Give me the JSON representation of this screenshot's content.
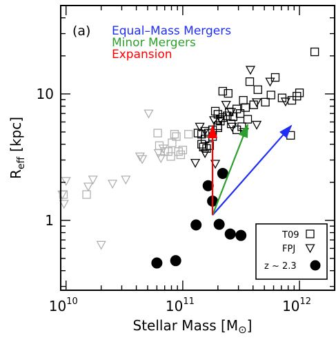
{
  "chart_data": {
    "type": "scatter",
    "panel_label": "(a)",
    "xlabel": "Stellar Mass [M",
    "xlabel_unit_symbol": "⊙",
    "xlabel_close": "]",
    "ylabel_main": "R",
    "ylabel_sub": "eff",
    "ylabel_unit": "[kpc]",
    "xscale": "log",
    "yscale": "log",
    "xlim": [
      9000000000.0,
      2000000000000.0
    ],
    "ylim": [
      0.28,
      50
    ],
    "x_ticks": [
      {
        "value": 10000000000.0,
        "base": "10",
        "exp": "10"
      },
      {
        "value": 100000000000.0,
        "base": "10",
        "exp": "11"
      },
      {
        "value": 1000000000000.0,
        "base": "10",
        "exp": "12"
      }
    ],
    "y_ticks": [
      {
        "value": 1,
        "label": "1"
      },
      {
        "value": 10,
        "label": "10"
      }
    ],
    "colors": {
      "axis": "#000000",
      "gray": "#b0b0b0",
      "equal_mass": "#1f2df5",
      "minor": "#2ca02c",
      "expansion": "#ff0000"
    },
    "annotations": [
      {
        "text": "Equal–Mass Mergers",
        "color": "#1f2df5"
      },
      {
        "text": "Minor Mergers",
        "color": "#2ca02c"
      },
      {
        "text": "Expansion",
        "color": "#ff0000"
      }
    ],
    "legend": {
      "placement": "bottom-right",
      "entries": [
        {
          "label": "T09",
          "marker": "square"
        },
        {
          "label": "FPJ",
          "marker": "triangle-down"
        },
        {
          "label": "z ~ 2.3",
          "marker": "filled-circle"
        }
      ]
    },
    "arrows": [
      {
        "name": "equal-mass-arrow",
        "color": "#1f2df5",
        "from": [
          180000000000.0,
          1.1
        ],
        "to": [
          850000000000.0,
          5.6
        ]
      },
      {
        "name": "minor-arrow",
        "color": "#2ca02c",
        "from": [
          180000000000.0,
          1.1
        ],
        "to": [
          360000000000.0,
          5.7
        ]
      },
      {
        "name": "expansion-arrow",
        "color": "#ff0000",
        "from": [
          180000000000.0,
          1.1
        ],
        "to": [
          180000000000.0,
          5.6
        ]
      }
    ],
    "series": [
      {
        "name": "z ~ 2.3",
        "marker": "filled-circle",
        "color": "#000000",
        "x": [
          60000000000.0,
          87000000000.0,
          130000000000.0,
          165000000000.0,
          180000000000.0,
          205000000000.0,
          220000000000.0,
          255000000000.0,
          315000000000.0
        ],
        "y": [
          0.46,
          0.48,
          0.92,
          1.88,
          1.42,
          0.93,
          2.35,
          0.78,
          0.76
        ]
      },
      {
        "name": "T09",
        "marker": "square",
        "color": "#000000",
        "x": [
          1350000000000.0,
          1000000000000.0,
          860000000000.0,
          950000000000.0,
          710000000000.0,
          620000000000.0,
          375000000000.0,
          440000000000.0,
          570000000000.0,
          510000000000.0,
          405000000000.0,
          345000000000.0,
          290000000000.0,
          250000000000.0,
          220000000000.0,
          200000000000.0,
          190000000000.0,
          270000000000.0,
          310000000000.0,
          330000000000.0,
          360000000000.0,
          245000000000.0,
          220000000000.0,
          200000000000.0,
          180000000000.0,
          165000000000.0,
          155000000000.0,
          145000000000.0,
          135000000000.0,
          145000000000.0,
          160000000000.0,
          180000000000.0,
          200000000000.0,
          210000000000.0,
          240000000000.0,
          260000000000.0,
          290000000000.0,
          320000000000.0,
          170000000000.0,
          150000000000.0,
          840000000000.0
        ],
        "y": [
          21.5,
          10.2,
          8.9,
          9.6,
          9.3,
          13.5,
          12.5,
          10.8,
          9.8,
          8.6,
          8.2,
          7.8,
          7.6,
          7.2,
          6.5,
          6.9,
          7.3,
          6.6,
          7.0,
          8.9,
          6.3,
          10.1,
          10.5,
          5.6,
          5.2,
          4.9,
          4.4,
          4.8,
          4.9,
          4.0,
          3.7,
          4.6,
          5.4,
          6.1,
          6.7,
          5.8,
          5.2,
          5.5,
          3.9,
          3.8,
          4.7
        ]
      },
      {
        "name": "FPJ",
        "marker": "triangle-down",
        "color": "#000000",
        "x": [
          380000000000.0,
          560000000000.0,
          760000000000.0,
          430000000000.0,
          260000000000.0,
          235000000000.0,
          210000000000.0,
          185000000000.0,
          155000000000.0,
          140000000000.0,
          128000000000.0,
          155000000000.0,
          430000000000.0,
          335000000000.0,
          265000000000.0,
          190000000000.0
        ],
        "y": [
          15.5,
          12.5,
          8.7,
          8.6,
          7.2,
          8.2,
          6.3,
          6.2,
          5.1,
          5.5,
          2.85,
          3.4,
          5.7,
          5.0,
          5.5,
          2.8
        ]
      },
      {
        "name": "T09 (gray)",
        "marker": "square",
        "color": "#b0b0b0",
        "x": [
          61000000000.0,
          63000000000.0,
          70000000000.0,
          75000000000.0,
          79000000000.0,
          81000000000.0,
          85000000000.0,
          88000000000.0,
          92000000000.0,
          96000000000.0,
          100000000000.0,
          112000000000.0,
          9500000000.0,
          15000000000.0
        ],
        "y": [
          4.9,
          3.9,
          3.5,
          3.5,
          3.2,
          4.1,
          4.8,
          4.6,
          3.5,
          3.3,
          3.6,
          4.8,
          1.6,
          1.6
        ]
      },
      {
        "name": "FPJ (gray)",
        "marker": "triangle-down",
        "color": "#b0b0b0",
        "x": [
          51000000000.0,
          43000000000.0,
          45000000000.0,
          62000000000.0,
          65000000000.0,
          68000000000.0,
          10000000000.0,
          9300000000.0,
          17000000000.0,
          25000000000.0,
          32500000000.0,
          15500000000.0,
          20000000000.0,
          9600000000.0
        ],
        "y": [
          7.0,
          3.2,
          3.05,
          3.4,
          3.1,
          3.7,
          2.05,
          1.6,
          2.1,
          1.95,
          2.1,
          1.85,
          0.64,
          1.35
        ]
      }
    ]
  }
}
